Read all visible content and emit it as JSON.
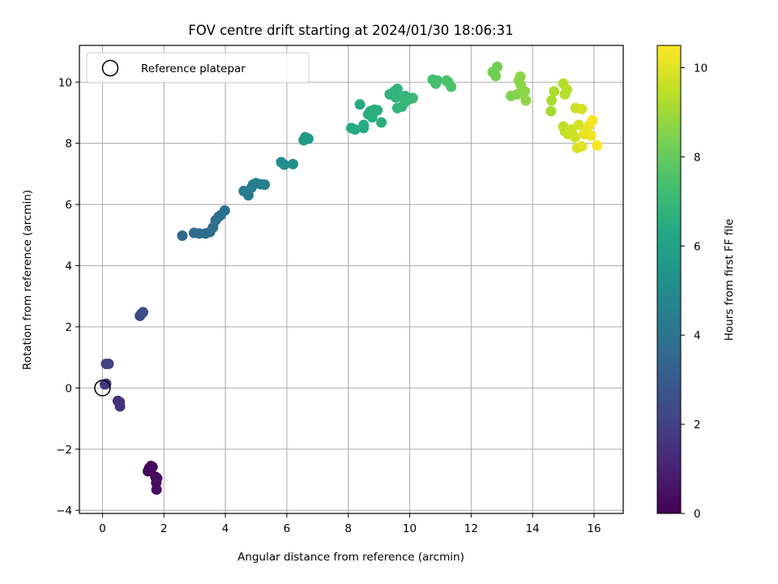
{
  "chart_data": {
    "type": "scatter",
    "title": "FOV centre drift starting at 2024/01/30 18:06:31",
    "xlabel": "Angular distance from reference (arcmin)",
    "ylabel": "Rotation from reference (arcmin)",
    "xlim": [
      -0.75,
      16.95
    ],
    "ylim": [
      -4.1,
      11.2
    ],
    "xticks": [
      0,
      2,
      4,
      6,
      8,
      10,
      12,
      14,
      16
    ],
    "yticks": [
      -4,
      -2,
      0,
      2,
      4,
      6,
      8,
      10
    ],
    "grid": true,
    "legend": {
      "position": "top-left",
      "entries": [
        "Reference platepar"
      ]
    },
    "reference_point": {
      "x": 0.0,
      "y": 0.0,
      "marker": "open-circle"
    },
    "colorbar": {
      "label": "Hours from first FF file",
      "range": [
        0,
        10.5
      ],
      "ticks": [
        0,
        2,
        4,
        6,
        8,
        10
      ],
      "colormap": "viridis"
    },
    "points": [
      {
        "x": 1.48,
        "y": -2.72,
        "h": 0.05
      },
      {
        "x": 1.52,
        "y": -2.62,
        "h": 0.1
      },
      {
        "x": 1.58,
        "y": -2.55,
        "h": 0.15
      },
      {
        "x": 1.63,
        "y": -2.58,
        "h": 0.2
      },
      {
        "x": 1.72,
        "y": -2.9,
        "h": 0.25
      },
      {
        "x": 1.75,
        "y": -3.1,
        "h": 0.3
      },
      {
        "x": 1.76,
        "y": -3.32,
        "h": 0.35
      },
      {
        "x": 1.78,
        "y": -2.95,
        "h": 0.4
      },
      {
        "x": 0.5,
        "y": -0.42,
        "h": 1.4
      },
      {
        "x": 0.56,
        "y": -0.46,
        "h": 1.45
      },
      {
        "x": 0.57,
        "y": -0.6,
        "h": 1.5
      },
      {
        "x": 0.08,
        "y": 0.12,
        "h": 1.7
      },
      {
        "x": 0.12,
        "y": 0.14,
        "h": 1.75
      },
      {
        "x": 0.12,
        "y": 0.79,
        "h": 1.9
      },
      {
        "x": 0.2,
        "y": 0.79,
        "h": 1.95
      },
      {
        "x": 1.22,
        "y": 2.36,
        "h": 2.3
      },
      {
        "x": 1.27,
        "y": 2.43,
        "h": 2.35
      },
      {
        "x": 1.32,
        "y": 2.48,
        "h": 2.4
      },
      {
        "x": 2.6,
        "y": 4.98,
        "h": 3.6
      },
      {
        "x": 2.98,
        "y": 5.07,
        "h": 3.65
      },
      {
        "x": 3.15,
        "y": 5.05,
        "h": 3.7
      },
      {
        "x": 3.35,
        "y": 5.05,
        "h": 3.7
      },
      {
        "x": 3.5,
        "y": 5.1,
        "h": 3.75
      },
      {
        "x": 3.6,
        "y": 5.25,
        "h": 3.75
      },
      {
        "x": 3.68,
        "y": 5.48,
        "h": 3.8
      },
      {
        "x": 3.78,
        "y": 5.6,
        "h": 3.8
      },
      {
        "x": 3.85,
        "y": 5.65,
        "h": 3.85
      },
      {
        "x": 3.98,
        "y": 5.8,
        "h": 3.9
      },
      {
        "x": 4.6,
        "y": 6.44,
        "h": 4.3
      },
      {
        "x": 4.75,
        "y": 6.3,
        "h": 4.35
      },
      {
        "x": 4.85,
        "y": 6.55,
        "h": 4.4
      },
      {
        "x": 4.9,
        "y": 6.65,
        "h": 4.4
      },
      {
        "x": 5.0,
        "y": 6.7,
        "h": 4.45
      },
      {
        "x": 5.15,
        "y": 6.66,
        "h": 4.5
      },
      {
        "x": 5.28,
        "y": 6.65,
        "h": 4.55
      },
      {
        "x": 5.82,
        "y": 7.38,
        "h": 5.1
      },
      {
        "x": 5.92,
        "y": 7.3,
        "h": 5.15
      },
      {
        "x": 6.2,
        "y": 7.32,
        "h": 5.2
      },
      {
        "x": 6.55,
        "y": 8.1,
        "h": 5.6
      },
      {
        "x": 6.6,
        "y": 8.2,
        "h": 5.65
      },
      {
        "x": 6.7,
        "y": 8.15,
        "h": 5.7
      },
      {
        "x": 8.1,
        "y": 8.5,
        "h": 6.3
      },
      {
        "x": 8.22,
        "y": 8.45,
        "h": 6.35
      },
      {
        "x": 8.38,
        "y": 9.27,
        "h": 6.4
      },
      {
        "x": 8.5,
        "y": 8.5,
        "h": 6.4
      },
      {
        "x": 8.5,
        "y": 8.6,
        "h": 6.45
      },
      {
        "x": 8.65,
        "y": 8.95,
        "h": 6.5
      },
      {
        "x": 8.72,
        "y": 9.05,
        "h": 6.5
      },
      {
        "x": 8.85,
        "y": 9.1,
        "h": 6.55
      },
      {
        "x": 8.95,
        "y": 9.08,
        "h": 6.6
      },
      {
        "x": 8.78,
        "y": 8.85,
        "h": 6.55
      },
      {
        "x": 9.08,
        "y": 8.68,
        "h": 6.6
      },
      {
        "x": 9.35,
        "y": 9.6,
        "h": 6.7
      },
      {
        "x": 9.5,
        "y": 9.7,
        "h": 6.75
      },
      {
        "x": 9.6,
        "y": 9.78,
        "h": 6.75
      },
      {
        "x": 9.55,
        "y": 9.5,
        "h": 6.8
      },
      {
        "x": 9.6,
        "y": 9.15,
        "h": 6.8
      },
      {
        "x": 9.75,
        "y": 9.2,
        "h": 6.85
      },
      {
        "x": 9.85,
        "y": 9.35,
        "h": 6.9
      },
      {
        "x": 9.85,
        "y": 9.55,
        "h": 6.9
      },
      {
        "x": 10.0,
        "y": 9.45,
        "h": 6.95
      },
      {
        "x": 10.1,
        "y": 9.48,
        "h": 7.0
      },
      {
        "x": 10.75,
        "y": 10.08,
        "h": 7.3
      },
      {
        "x": 10.85,
        "y": 9.95,
        "h": 7.35
      },
      {
        "x": 10.9,
        "y": 10.05,
        "h": 7.35
      },
      {
        "x": 11.2,
        "y": 10.05,
        "h": 7.4
      },
      {
        "x": 11.25,
        "y": 10.0,
        "h": 7.45
      },
      {
        "x": 11.35,
        "y": 9.85,
        "h": 7.5
      },
      {
        "x": 12.7,
        "y": 10.33,
        "h": 8.2
      },
      {
        "x": 12.8,
        "y": 10.2,
        "h": 8.25
      },
      {
        "x": 12.85,
        "y": 10.5,
        "h": 8.25
      },
      {
        "x": 13.3,
        "y": 9.55,
        "h": 8.5
      },
      {
        "x": 13.5,
        "y": 9.6,
        "h": 8.55
      },
      {
        "x": 13.55,
        "y": 10.05,
        "h": 8.6
      },
      {
        "x": 13.6,
        "y": 10.18,
        "h": 8.6
      },
      {
        "x": 13.62,
        "y": 9.9,
        "h": 8.65
      },
      {
        "x": 13.75,
        "y": 9.7,
        "h": 8.7
      },
      {
        "x": 13.78,
        "y": 9.4,
        "h": 8.7
      },
      {
        "x": 14.6,
        "y": 9.05,
        "h": 9.1
      },
      {
        "x": 14.62,
        "y": 9.4,
        "h": 9.15
      },
      {
        "x": 14.7,
        "y": 9.7,
        "h": 9.2
      },
      {
        "x": 15.0,
        "y": 9.95,
        "h": 9.3
      },
      {
        "x": 15.05,
        "y": 9.6,
        "h": 9.35
      },
      {
        "x": 15.12,
        "y": 9.75,
        "h": 9.35
      },
      {
        "x": 15.0,
        "y": 8.55,
        "h": 9.5
      },
      {
        "x": 15.05,
        "y": 8.4,
        "h": 9.55
      },
      {
        "x": 15.15,
        "y": 8.3,
        "h": 9.6
      },
      {
        "x": 15.25,
        "y": 8.45,
        "h": 9.65
      },
      {
        "x": 15.3,
        "y": 8.3,
        "h": 9.7
      },
      {
        "x": 15.38,
        "y": 8.2,
        "h": 9.75
      },
      {
        "x": 15.4,
        "y": 9.15,
        "h": 9.7
      },
      {
        "x": 15.5,
        "y": 8.6,
        "h": 9.8
      },
      {
        "x": 15.6,
        "y": 9.12,
        "h": 9.85
      },
      {
        "x": 15.45,
        "y": 7.85,
        "h": 9.9
      },
      {
        "x": 15.6,
        "y": 7.9,
        "h": 10.0
      },
      {
        "x": 15.68,
        "y": 8.3,
        "h": 10.05
      },
      {
        "x": 15.75,
        "y": 8.45,
        "h": 10.1
      },
      {
        "x": 15.85,
        "y": 8.6,
        "h": 10.2
      },
      {
        "x": 15.9,
        "y": 8.25,
        "h": 10.3
      },
      {
        "x": 15.95,
        "y": 8.75,
        "h": 10.35
      },
      {
        "x": 16.1,
        "y": 7.93,
        "h": 10.45
      }
    ]
  }
}
